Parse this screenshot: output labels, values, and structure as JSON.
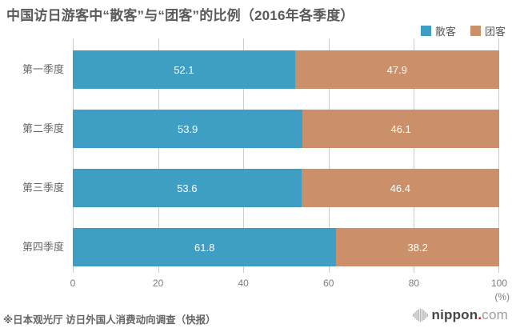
{
  "title": "中国访日游客中“散客”与“团客”的比例（2016年各季度）",
  "source_note": "※日本观光厅 访日外国人消费动向调查（快报）",
  "logo": {
    "brand": "nippon",
    "dot": ".",
    "tld": "com"
  },
  "colors": {
    "individual_blue": "#3e9ec4",
    "group_orange": "#cb9069",
    "gridline": "#cccccc",
    "title_text": "#5a5a5a",
    "axis_text": "#7d7d7d",
    "value_text": "#ffffff",
    "logo_dot_red": "#cf1126"
  },
  "chart_data": {
    "type": "bar",
    "orientation": "horizontal",
    "stacked": true,
    "title": "中国访日游客中“散客”与“团客”的比例（2016年各季度）",
    "categories": [
      "第一季度",
      "第二季度",
      "第三季度",
      "第四季度"
    ],
    "series": [
      {
        "name": "散客",
        "color": "#3e9ec4",
        "values": [
          52.1,
          53.9,
          53.6,
          61.8
        ]
      },
      {
        "name": "团客",
        "color": "#cb9069",
        "values": [
          47.9,
          46.1,
          46.4,
          38.2
        ]
      }
    ],
    "xlim": [
      0,
      100
    ],
    "xticks": [
      0,
      20,
      40,
      60,
      80,
      100
    ],
    "x_unit": "(%)",
    "ylabel": "",
    "xlabel": "",
    "grid": true,
    "legend_position": "top-right",
    "value_labels": "centered-inside-white"
  }
}
